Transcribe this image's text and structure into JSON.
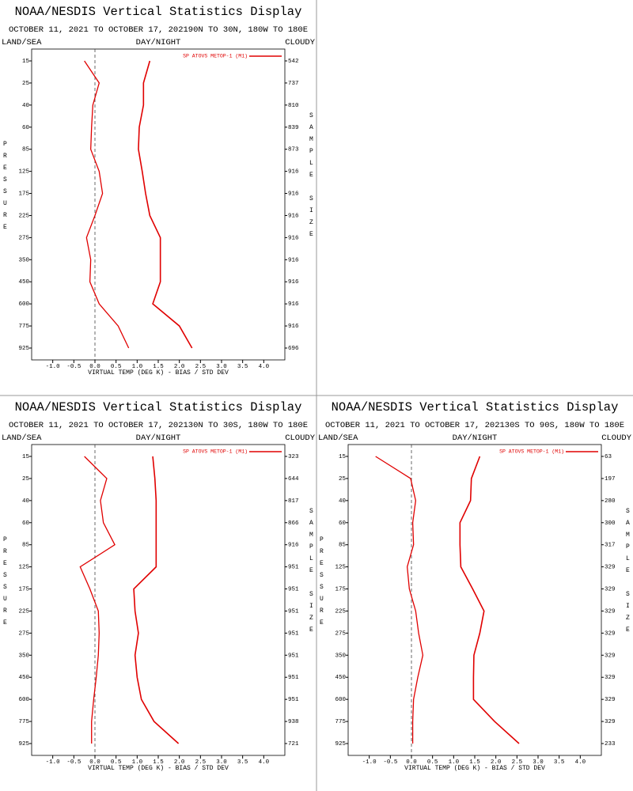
{
  "chart_data": [
    {
      "type": "line",
      "title": "NOAA/NESDIS Vertical Statistics Display",
      "subtitle": "OCTOBER 11, 2021 TO OCTOBER 17, 202190N TO 30N, 180W TO 180E",
      "header_left": "LAND/SEA",
      "header_center": "DAY/NIGHT",
      "header_right": "CLOUDY",
      "x_label": "VIRTUAL TEMP (DEG K) - BIAS / STD DEV",
      "y_label": "PRESSURE",
      "y2_label": "SAMPLE SIZE",
      "categories": [
        "15",
        "25",
        "40",
        "60",
        "85",
        "125",
        "175",
        "225",
        "275",
        "350",
        "450",
        "600",
        "775",
        "925"
      ],
      "sample_size": [
        542,
        737,
        810,
        839,
        873,
        916,
        916,
        916,
        916,
        916,
        916,
        916,
        916,
        696
      ],
      "series": [
        {
          "name": "SP ATOVS METOP-1 (M1)",
          "color": "#e00000",
          "bias": [
            -0.25,
            0.1,
            -0.05,
            -0.08,
            -0.1,
            0.1,
            0.18,
            0.0,
            -0.2,
            -0.1,
            -0.12,
            0.1,
            0.55,
            0.8
          ],
          "std_dev": [
            1.3,
            1.15,
            1.15,
            1.05,
            1.03,
            1.12,
            1.2,
            1.3,
            1.55,
            1.55,
            1.55,
            1.37,
            2.0,
            2.3
          ]
        }
      ],
      "xlim": [
        -1.5,
        4.5
      ],
      "xticks": [
        {
          "value": -1,
          "label": "-1.0"
        },
        -0.5,
        {
          "value": 0,
          "label": "0.0"
        },
        0.5,
        {
          "value": 1,
          "label": "1.0"
        },
        1.5,
        {
          "value": 2,
          "label": "2.0"
        },
        2.5,
        {
          "value": 3,
          "label": "3.0"
        },
        3.5,
        {
          "value": 4,
          "label": "4.0"
        }
      ]
    },
    {
      "type": "line",
      "title": "NOAA/NESDIS Vertical Statistics Display",
      "subtitle": "OCTOBER 11, 2021 TO OCTOBER 17, 202130N TO 30S, 180W TO 180E",
      "header_left": "LAND/SEA",
      "header_center": "DAY/NIGHT",
      "header_right": "CLOUDY",
      "x_label": "VIRTUAL TEMP (DEG K) - BIAS / STD DEV",
      "y_label": "PRESSURE",
      "y2_label": "SAMPLE SIZE",
      "categories": [
        "15",
        "25",
        "40",
        "60",
        "85",
        "125",
        "175",
        "225",
        "275",
        "350",
        "450",
        "600",
        "775",
        "925"
      ],
      "sample_size": [
        323,
        644,
        817,
        866,
        916,
        951,
        951,
        951,
        951,
        951,
        951,
        951,
        938,
        721
      ],
      "series": [
        {
          "name": "SP ATOVS METOP-1 (M1)",
          "color": "#e00000",
          "bias": [
            -0.25,
            0.28,
            0.13,
            0.2,
            0.47,
            -0.35,
            -0.12,
            0.08,
            0.1,
            0.08,
            0.03,
            -0.03,
            -0.08,
            -0.08
          ],
          "std_dev": [
            1.37,
            1.42,
            1.45,
            1.45,
            1.45,
            1.45,
            0.92,
            0.95,
            1.03,
            0.95,
            1.0,
            1.1,
            1.4,
            1.98
          ]
        }
      ],
      "xlim": [
        -1.5,
        4.5
      ],
      "xticks": [
        {
          "value": -1,
          "label": "-1.0"
        },
        -0.5,
        {
          "value": 0,
          "label": "0.0"
        },
        0.5,
        {
          "value": 1,
          "label": "1.0"
        },
        1.5,
        {
          "value": 2,
          "label": "2.0"
        },
        2.5,
        {
          "value": 3,
          "label": "3.0"
        },
        3.5,
        {
          "value": 4,
          "label": "4.0"
        }
      ]
    },
    {
      "type": "line",
      "title": "NOAA/NESDIS Vertical Statistics Display",
      "subtitle": "OCTOBER 11, 2021 TO OCTOBER 17, 202130S TO 90S, 180W TO 180E",
      "header_left": "LAND/SEA",
      "header_center": "DAY/NIGHT",
      "header_right": "CLOUDY",
      "x_label": "VIRTUAL TEMP (DEG K) - BIAS / STD DEV",
      "y_label": "PRESSURE",
      "y2_label": "SAMPLE SIZE",
      "categories": [
        "15",
        "25",
        "40",
        "60",
        "85",
        "125",
        "175",
        "225",
        "275",
        "350",
        "450",
        "600",
        "775",
        "925"
      ],
      "sample_size": [
        63,
        197,
        280,
        300,
        317,
        329,
        329,
        329,
        329,
        329,
        329,
        329,
        329,
        233
      ],
      "series": [
        {
          "name": "SP ATOVS METOP-1 (M1)",
          "color": "#e00000",
          "bias": [
            -0.85,
            -0.02,
            0.1,
            0.03,
            0.05,
            -0.1,
            -0.05,
            0.1,
            0.17,
            0.27,
            0.15,
            0.05,
            0.03,
            0.03
          ],
          "std_dev": [
            1.62,
            1.42,
            1.4,
            1.15,
            1.15,
            1.17,
            1.45,
            1.72,
            1.62,
            1.48,
            1.47,
            1.47,
            1.97,
            2.55
          ]
        }
      ],
      "xlim": [
        -1.5,
        4.5
      ],
      "xticks": [
        {
          "value": -1,
          "label": "-1.0"
        },
        -0.5,
        {
          "value": 0,
          "label": "0.0"
        },
        0.5,
        {
          "value": 1,
          "label": "1.0"
        },
        1.5,
        {
          "value": 2,
          "label": "2.0"
        },
        2.5,
        {
          "value": 3,
          "label": "3.0"
        },
        3.5,
        {
          "value": 4,
          "label": "4.0"
        }
      ]
    }
  ]
}
